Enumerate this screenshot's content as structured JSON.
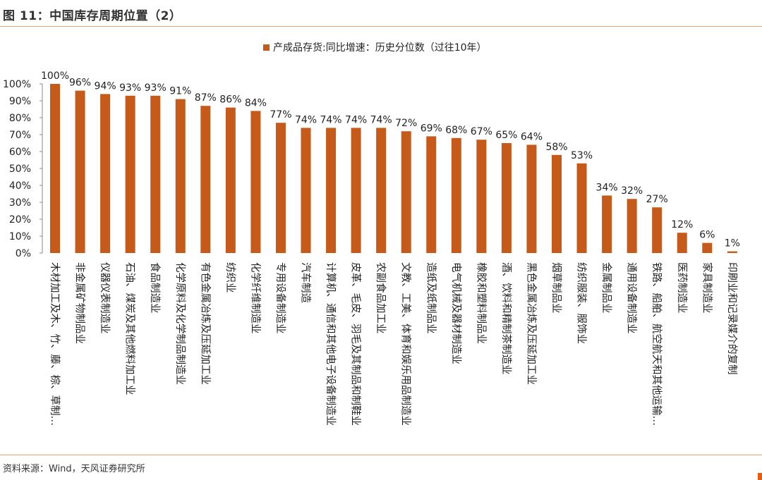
{
  "header": {
    "title": "图 11：中国库存周期位置（2）"
  },
  "footer": {
    "source": "资料来源：Wind，天风证券研究所"
  },
  "colors": {
    "bar": "#c55a1a",
    "accent": "#e9a56a"
  },
  "chart_data": {
    "type": "bar",
    "title": "",
    "legend": "产成品存货:同比增速：历史分位数（过往10年）",
    "legend_position": "top",
    "xlabel": "",
    "ylabel": "",
    "ylim": [
      0,
      100
    ],
    "yticks": [
      "0%",
      "10%",
      "20%",
      "30%",
      "40%",
      "50%",
      "60%",
      "70%",
      "80%",
      "90%",
      "100%"
    ],
    "categories": [
      "木材加工及木、竹、藤、棕、草制…",
      "非金属矿物制品业",
      "仪器仪表制造业",
      "石油、煤炭及其他燃料加工业",
      "食品制造业",
      "化学原料及化学制品制造业",
      "有色金属冶炼及压延加工业",
      "纺织业",
      "化学纤维制造业",
      "专用设备制造业",
      "汽车制造",
      "计算机、通信和其他电子设备制造业",
      "皮革、毛皮、羽毛及其制品和制鞋业",
      "农副食品加工业",
      "文教、工美、体育和娱乐用品制造业",
      "造纸及纸制品业",
      "电气机械及器材制造业",
      "橡胶和塑料制品业",
      "酒、饮料和精制茶制造业",
      "黑色金属冶炼及压延加工业",
      "烟草制品业",
      "纺织服装、服饰业",
      "金属制品业",
      "通用设备制造业",
      "铁路、船舶、航空航天和其他运输…",
      "医药制造业",
      "家具制造业",
      "印刷业和记录媒介的复制"
    ],
    "values": [
      100,
      96,
      94,
      93,
      93,
      91,
      87,
      86,
      84,
      77,
      74,
      74,
      74,
      74,
      72,
      69,
      68,
      67,
      65,
      64,
      58,
      53,
      34,
      32,
      27,
      12,
      6,
      1
    ],
    "data_labels": [
      "100%",
      "96%",
      "94%",
      "93%",
      "93%",
      "91%",
      "87%",
      "86%",
      "84%",
      "77%",
      "74%",
      "74%",
      "74%",
      "74%",
      "72%",
      "69%",
      "68%",
      "67%",
      "65%",
      "64%",
      "58%",
      "53%",
      "34%",
      "32%",
      "27%",
      "12%",
      "6%",
      "1%"
    ]
  }
}
